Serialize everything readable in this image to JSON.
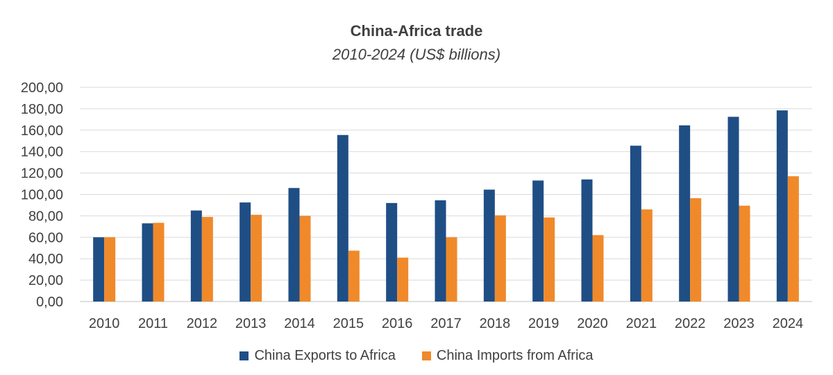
{
  "chart_data": {
    "type": "bar",
    "title": "China-Africa trade",
    "subtitle": "2010-2024 (US$ billions)",
    "xlabel": "",
    "ylabel": "",
    "ylim": [
      0,
      200
    ],
    "yticks": [
      "0,00",
      "20,00",
      "40,00",
      "60,00",
      "80,00",
      "100,00",
      "120,00",
      "140,00",
      "160,00",
      "180,00",
      "200,00"
    ],
    "grid": true,
    "legend_position": "bottom",
    "categories": [
      "2010",
      "2011",
      "2012",
      "2013",
      "2014",
      "2015",
      "2016",
      "2017",
      "2018",
      "2019",
      "2020",
      "2021",
      "2022",
      "2023",
      "2024"
    ],
    "series": [
      {
        "name": "China Exports to Africa",
        "color": "#1f4e85",
        "values": [
          60,
          73,
          85,
          92.5,
          106,
          155.5,
          92,
          94.5,
          104.5,
          113,
          114,
          145.5,
          164.5,
          172.5,
          178.5
        ]
      },
      {
        "name": "China Imports from Africa",
        "color": "#f0892a",
        "values": [
          60,
          73.5,
          79,
          81,
          80,
          47.5,
          41,
          60,
          80.5,
          78.5,
          62,
          86,
          96.5,
          89.5,
          117
        ]
      }
    ]
  }
}
